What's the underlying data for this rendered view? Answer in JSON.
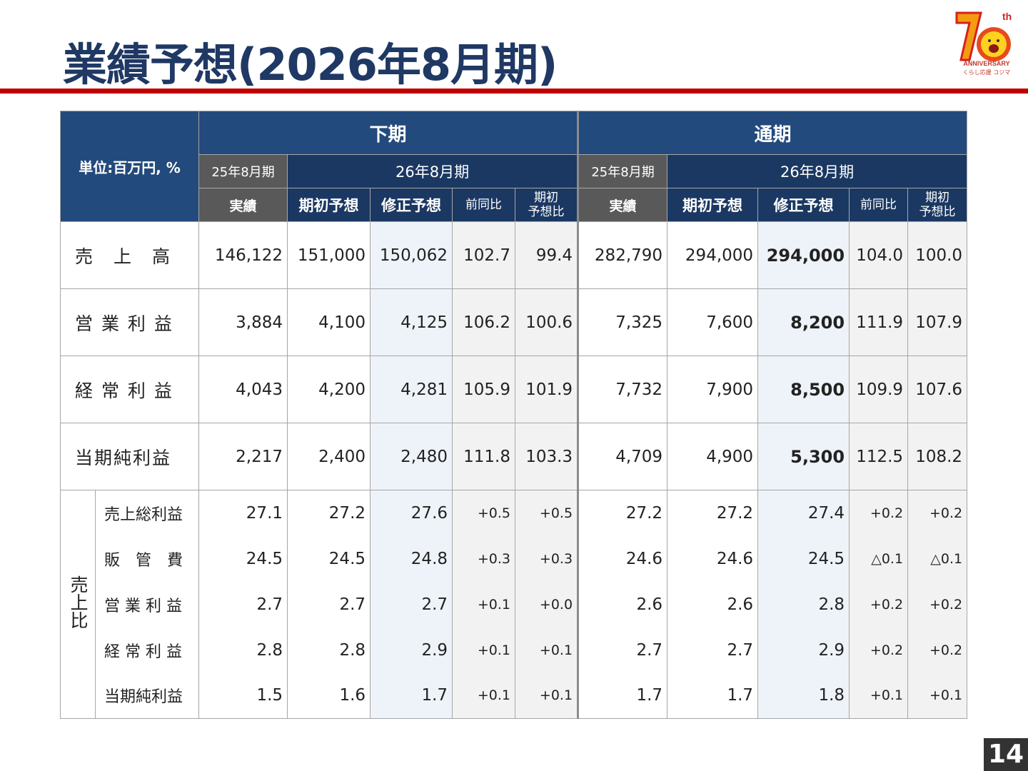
{
  "title": "業績予想(2026年8月期)",
  "logo": {
    "text": "70th ANNIVERSARY くらし応援 コジマ"
  },
  "page_number": "14",
  "header": {
    "unit": "単位:百万円, %",
    "groups": [
      "下期",
      "通期"
    ],
    "prev_year": "25年8月期",
    "cur_year": "26年8月期",
    "cols": [
      "実績",
      "期初予想",
      "修正予想",
      "前同比",
      "期初\n予想比"
    ]
  },
  "main_rows": [
    {
      "label": "売　上　高",
      "values": [
        "146,122",
        "151,000",
        "150,062",
        "102.7",
        "99.4",
        "282,790",
        "294,000",
        "294,000",
        "104.0",
        "100.0"
      ]
    },
    {
      "label": "営 業 利 益",
      "values": [
        "3,884",
        "4,100",
        "4,125",
        "106.2",
        "100.6",
        "7,325",
        "7,600",
        "8,200",
        "111.9",
        "107.9"
      ]
    },
    {
      "label": "経 常 利 益",
      "values": [
        "4,043",
        "4,200",
        "4,281",
        "105.9",
        "101.9",
        "7,732",
        "7,900",
        "8,500",
        "109.9",
        "107.6"
      ]
    },
    {
      "label": "当期純利益",
      "values": [
        "2,217",
        "2,400",
        "2,480",
        "111.8",
        "103.3",
        "4,709",
        "4,900",
        "5,300",
        "112.5",
        "108.2"
      ]
    }
  ],
  "ratio_label": "売上比",
  "ratio_rows": [
    {
      "label": "売上総利益",
      "values": [
        "27.1",
        "27.2",
        "27.6",
        "+0.5",
        "+0.5",
        "27.2",
        "27.2",
        "27.4",
        "+0.2",
        "+0.2"
      ]
    },
    {
      "label": "販　管　費",
      "values": [
        "24.5",
        "24.5",
        "24.8",
        "+0.3",
        "+0.3",
        "24.6",
        "24.6",
        "24.5",
        "△0.1",
        "△0.1"
      ]
    },
    {
      "label": "営 業 利 益",
      "values": [
        "2.7",
        "2.7",
        "2.7",
        "+0.1",
        "+0.0",
        "2.6",
        "2.6",
        "2.8",
        "+0.2",
        "+0.2"
      ]
    },
    {
      "label": "経 常 利 益",
      "values": [
        "2.8",
        "2.8",
        "2.9",
        "+0.1",
        "+0.1",
        "2.7",
        "2.7",
        "2.9",
        "+0.2",
        "+0.2"
      ]
    },
    {
      "label": "当期純利益",
      "values": [
        "1.5",
        "1.6",
        "1.7",
        "+0.1",
        "+0.1",
        "1.7",
        "1.7",
        "1.8",
        "+0.1",
        "+0.1"
      ]
    }
  ]
}
